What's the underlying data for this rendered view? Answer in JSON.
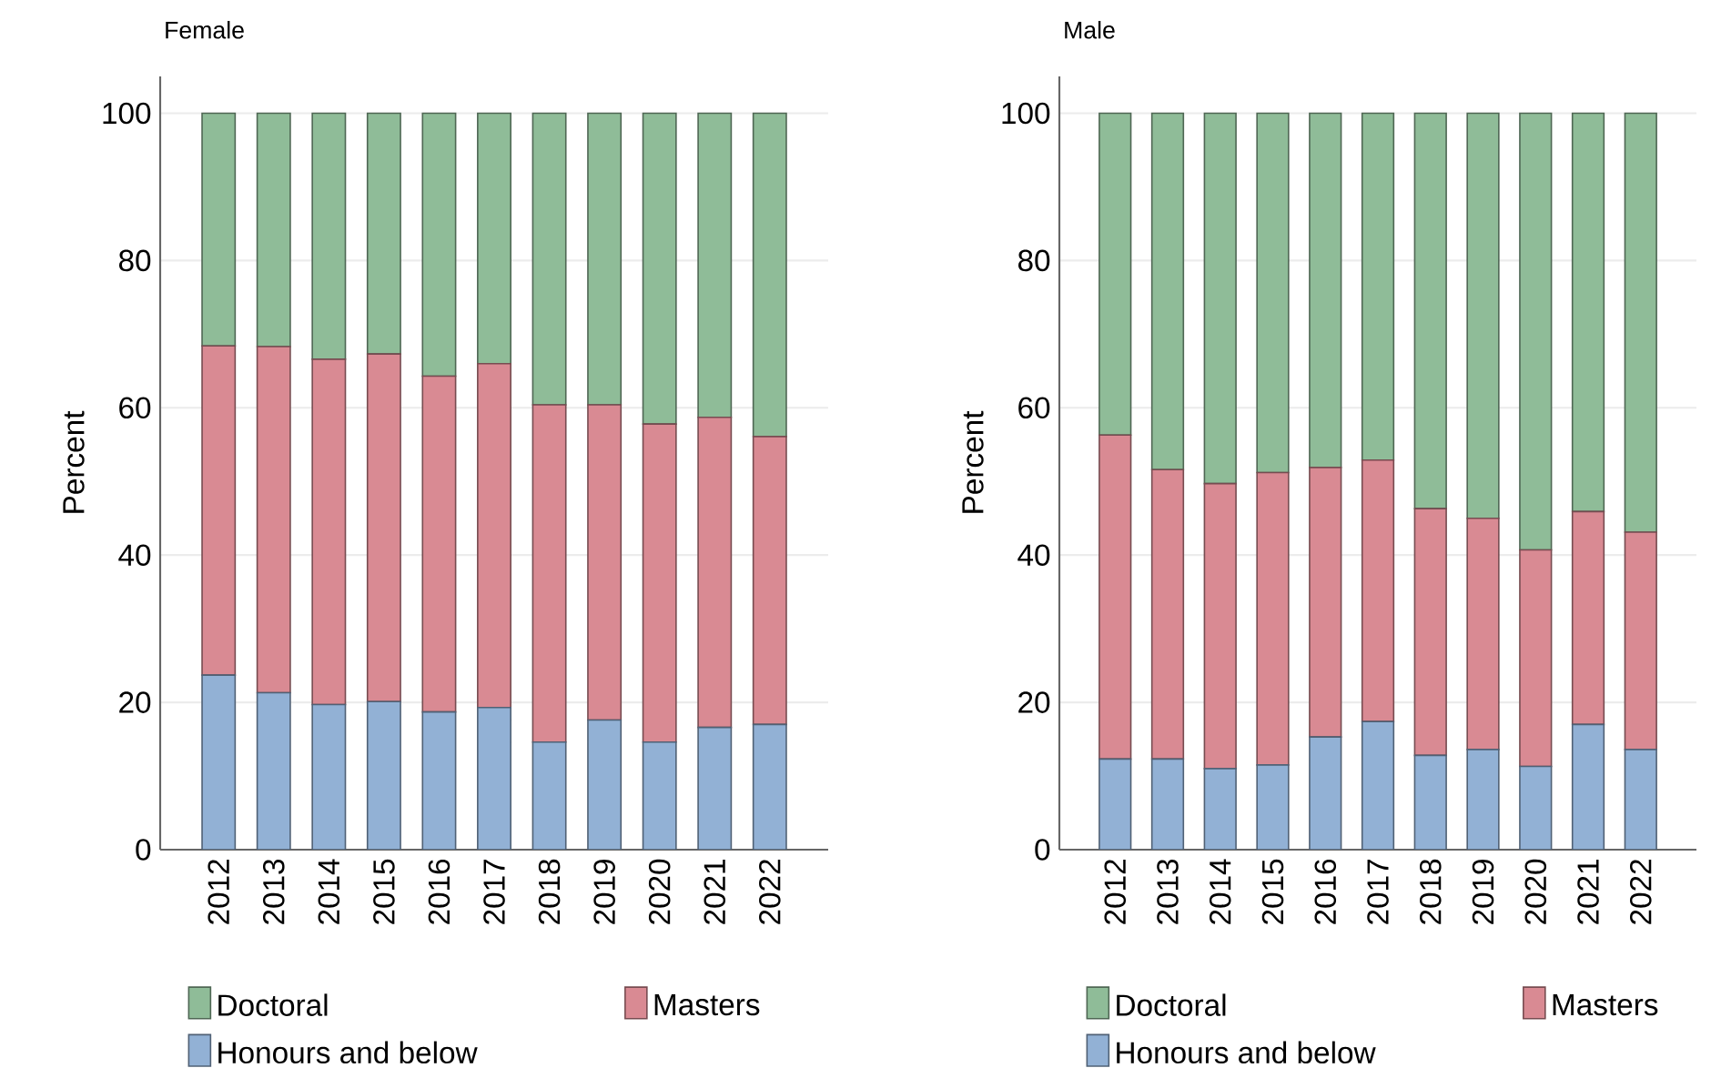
{
  "chart_data": [
    {
      "type": "bar",
      "stacked": true,
      "title": "Female",
      "ylabel": "Percent",
      "categories": [
        "2012",
        "2013",
        "2014",
        "2015",
        "2016",
        "2017",
        "2018",
        "2019",
        "2020",
        "2021",
        "2022"
      ],
      "ylim": [
        0,
        105
      ],
      "yticks": [
        0,
        20,
        40,
        60,
        80,
        100
      ],
      "grid": "y",
      "legend": "bottom",
      "series": [
        {
          "name": "Honours and below",
          "color": "#92b1d5",
          "values": [
            23.7,
            21.3,
            19.7,
            20.1,
            18.7,
            19.3,
            14.6,
            17.6,
            14.6,
            16.6,
            17.0
          ]
        },
        {
          "name": "Masters",
          "color": "#d98a93",
          "values": [
            44.7,
            47.0,
            46.9,
            47.2,
            45.6,
            46.7,
            45.8,
            42.8,
            43.2,
            42.1,
            39.1
          ]
        },
        {
          "name": "Doctoral",
          "color": "#8fbc98",
          "values": [
            31.6,
            31.7,
            33.4,
            32.7,
            35.7,
            34.0,
            39.6,
            39.6,
            42.2,
            41.3,
            43.9
          ]
        }
      ]
    },
    {
      "type": "bar",
      "stacked": true,
      "title": "Male",
      "ylabel": "Percent",
      "categories": [
        "2012",
        "2013",
        "2014",
        "2015",
        "2016",
        "2017",
        "2018",
        "2019",
        "2020",
        "2021",
        "2022"
      ],
      "ylim": [
        0,
        105
      ],
      "yticks": [
        0,
        20,
        40,
        60,
        80,
        100
      ],
      "grid": "y",
      "legend": "bottom",
      "series": [
        {
          "name": "Honours and below",
          "color": "#92b1d5",
          "values": [
            12.3,
            12.3,
            11.0,
            11.5,
            15.3,
            17.4,
            12.8,
            13.6,
            11.3,
            17.0,
            13.6
          ]
        },
        {
          "name": "Masters",
          "color": "#d98a93",
          "values": [
            44.0,
            39.3,
            38.7,
            39.7,
            36.6,
            35.5,
            33.5,
            31.4,
            29.4,
            28.9,
            29.5
          ]
        },
        {
          "name": "Doctoral",
          "color": "#8fbc98",
          "values": [
            43.7,
            48.4,
            50.3,
            48.8,
            48.1,
            47.1,
            53.7,
            55.0,
            59.3,
            54.1,
            56.9
          ]
        }
      ]
    }
  ]
}
